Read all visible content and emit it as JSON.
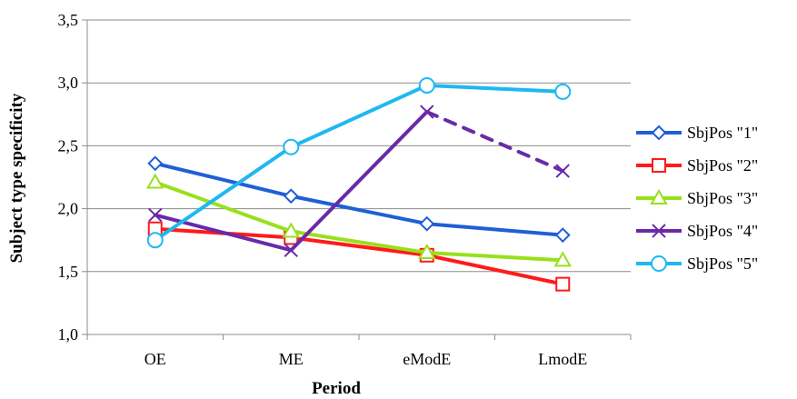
{
  "chart_data": {
    "type": "line",
    "title": "",
    "xlabel": "Period",
    "ylabel": "Subject type specificity",
    "categories": [
      "OE",
      "ME",
      "eModE",
      "LmodE"
    ],
    "ylim": [
      1.0,
      3.5
    ],
    "yticks": [
      1.0,
      1.5,
      2.0,
      2.5,
      3.0,
      3.5
    ],
    "ytick_labels": [
      "1,0",
      "1,5",
      "2,0",
      "2,5",
      "3,0",
      "3,5"
    ],
    "grid": "horizontal",
    "legend_position": "right",
    "series": [
      {
        "name": "SbjPos \"1\"",
        "values": [
          2.36,
          2.1,
          1.88,
          1.79
        ],
        "color": "#1f5fd6",
        "marker": "diamond",
        "dashed_from_index": null
      },
      {
        "name": "SbjPos \"2\"",
        "values": [
          1.84,
          1.77,
          1.63,
          1.4
        ],
        "color": "#ff1a1a",
        "marker": "square",
        "dashed_from_index": null
      },
      {
        "name": "SbjPos \"3\"",
        "values": [
          2.21,
          1.82,
          1.65,
          1.59
        ],
        "color": "#99e01a",
        "marker": "triangle",
        "dashed_from_index": null
      },
      {
        "name": "SbjPos \"4\"",
        "values": [
          1.95,
          1.67,
          2.77,
          2.3
        ],
        "color": "#6a2aa8",
        "marker": "x",
        "dashed_from_index": 2
      },
      {
        "name": "SbjPos \"5\"",
        "values": [
          1.75,
          2.49,
          2.98,
          2.93
        ],
        "color": "#1fb8f0",
        "marker": "circle",
        "dashed_from_index": null
      }
    ]
  }
}
